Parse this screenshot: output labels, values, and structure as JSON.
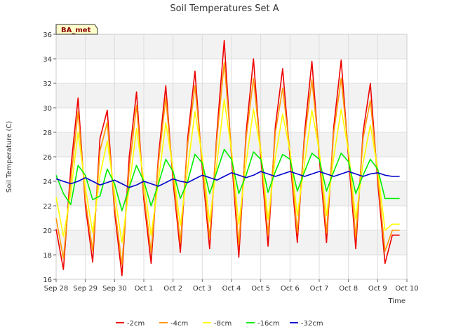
{
  "chart_data": {
    "type": "line",
    "title": "Soil Temperatures Set A",
    "xlabel": "Time",
    "ylabel": "Soil Temperature (C)",
    "ylim": [
      16,
      36
    ],
    "xlim": [
      0,
      12
    ],
    "yticks": [
      16,
      18,
      20,
      22,
      24,
      26,
      28,
      30,
      32,
      34,
      36
    ],
    "xtick_labels": [
      "Sep 28",
      "Sep 29",
      "Sep 30",
      "Oct 1",
      "Oct 2",
      "Oct 3",
      "Oct 4",
      "Oct 5",
      "Oct 6",
      "Oct 7",
      "Oct 8",
      "Oct 9",
      "Oct 10"
    ],
    "grid": true,
    "legend_position": "bottom",
    "station_label": "BA_met",
    "x": [
      0.0,
      0.25,
      0.5,
      0.75,
      1.0,
      1.25,
      1.5,
      1.75,
      2.0,
      2.25,
      2.5,
      2.75,
      3.0,
      3.25,
      3.5,
      3.75,
      4.0,
      4.25,
      4.5,
      4.75,
      5.0,
      5.25,
      5.5,
      5.75,
      6.0,
      6.25,
      6.5,
      6.75,
      7.0,
      7.25,
      7.5,
      7.75,
      8.0,
      8.25,
      8.5,
      8.75,
      9.0,
      9.25,
      9.5,
      9.75,
      10.0,
      10.25,
      10.5,
      10.75,
      11.0,
      11.25,
      11.5,
      11.75
    ],
    "series": [
      {
        "name": "-2cm",
        "color": "#ee0000",
        "values": [
          20.1,
          16.8,
          25.0,
          30.8,
          22.0,
          17.4,
          27.5,
          29.8,
          21.5,
          16.3,
          26.0,
          31.3,
          22.5,
          17.3,
          26.0,
          31.8,
          24.0,
          18.2,
          27.5,
          33.0,
          25.0,
          18.5,
          28.0,
          35.5,
          26.0,
          17.8,
          28.0,
          34.0,
          26.0,
          18.7,
          28.5,
          33.2,
          26.0,
          19.0,
          28.0,
          33.8,
          26.0,
          19.0,
          28.5,
          33.9,
          26.0,
          18.5,
          28.0,
          32.0,
          24.0,
          17.3,
          19.6,
          19.6
        ]
      },
      {
        "name": "-4cm",
        "color": "#ff9900",
        "values": [
          21.0,
          17.7,
          24.0,
          29.7,
          22.5,
          18.3,
          26.5,
          28.8,
          22.0,
          17.2,
          25.0,
          30.2,
          23.0,
          18.2,
          25.5,
          30.8,
          24.5,
          19.0,
          27.0,
          31.8,
          25.5,
          19.4,
          27.5,
          33.7,
          26.5,
          18.8,
          27.5,
          32.4,
          26.5,
          19.6,
          28.0,
          31.6,
          26.5,
          19.8,
          27.5,
          32.3,
          26.5,
          19.8,
          28.0,
          32.4,
          26.5,
          19.4,
          27.5,
          30.6,
          24.5,
          18.3,
          20.0,
          20.0
        ]
      },
      {
        "name": "-8cm",
        "color": "#ffff00",
        "values": [
          22.7,
          19.5,
          23.0,
          28.0,
          23.5,
          19.8,
          24.5,
          27.3,
          23.0,
          19.0,
          23.5,
          28.3,
          24.0,
          19.6,
          24.0,
          28.8,
          25.0,
          20.4,
          25.0,
          29.7,
          26.0,
          20.7,
          25.5,
          30.7,
          26.5,
          20.5,
          25.5,
          29.9,
          26.5,
          20.9,
          26.0,
          29.5,
          26.5,
          21.2,
          25.5,
          29.8,
          26.5,
          21.2,
          26.0,
          29.9,
          26.5,
          20.9,
          25.5,
          28.6,
          25.0,
          20.0,
          20.5,
          20.5
        ]
      },
      {
        "name": "-16cm",
        "color": "#00ee00",
        "values": [
          24.5,
          23.0,
          22.1,
          25.3,
          24.5,
          22.5,
          22.8,
          25.0,
          23.8,
          21.6,
          23.5,
          25.3,
          24.0,
          22.0,
          23.8,
          25.8,
          24.8,
          22.6,
          24.0,
          26.2,
          25.5,
          23.0,
          24.8,
          26.6,
          25.8,
          23.0,
          24.5,
          26.4,
          25.8,
          23.1,
          24.8,
          26.2,
          25.8,
          23.2,
          24.8,
          26.3,
          25.8,
          23.2,
          24.8,
          26.3,
          25.6,
          23.0,
          24.5,
          25.8,
          25.0,
          22.6,
          22.6,
          22.6
        ]
      },
      {
        "name": "-32cm",
        "color": "#0000cc",
        "values": [
          24.2,
          24.0,
          23.8,
          24.0,
          24.3,
          24.0,
          23.7,
          23.9,
          24.1,
          23.8,
          23.5,
          23.7,
          24.0,
          23.8,
          23.6,
          23.9,
          24.2,
          24.0,
          23.9,
          24.2,
          24.5,
          24.3,
          24.1,
          24.4,
          24.7,
          24.5,
          24.3,
          24.5,
          24.8,
          24.6,
          24.4,
          24.6,
          24.8,
          24.6,
          24.4,
          24.6,
          24.8,
          24.6,
          24.4,
          24.6,
          24.8,
          24.6,
          24.4,
          24.6,
          24.7,
          24.5,
          24.4,
          24.4
        ]
      }
    ]
  }
}
